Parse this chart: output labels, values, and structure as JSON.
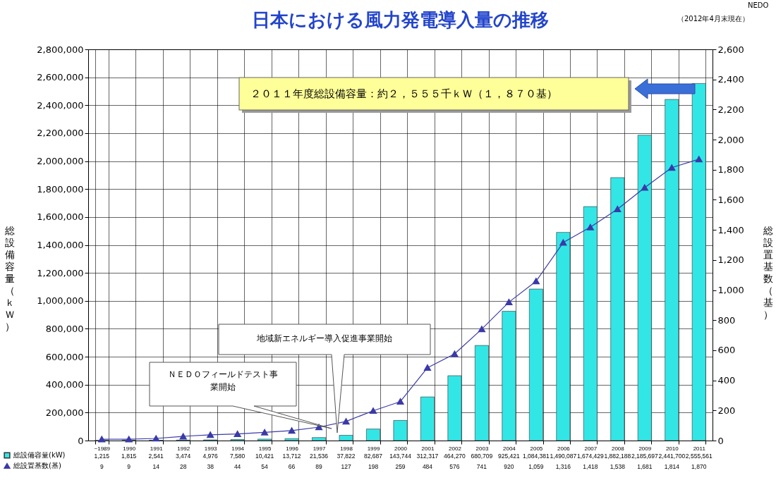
{
  "chart_data": {
    "type": "bar",
    "title": "日本における風力発電導入量の推移",
    "ylabel": "総設備容量（ｋＷ）",
    "y2label": "総設置基数（基）",
    "categories": [
      "~1989",
      "1990",
      "1991",
      "1992",
      "1993",
      "1994",
      "1995",
      "1996",
      "1997",
      "1998",
      "1999",
      "2000",
      "2001",
      "2002",
      "2003",
      "2004",
      "2005",
      "2006",
      "2007",
      "2008",
      "2009",
      "2010",
      "2011"
    ],
    "series": [
      {
        "name": "総設備容量(kW)",
        "color": "#33e6e6",
        "values": [
          1215,
          1815,
          2541,
          3474,
          4976,
          7580,
          10421,
          13712,
          21536,
          37822,
          82687,
          143744,
          312317,
          464270,
          680709,
          925421,
          1084381,
          1490087,
          1674429,
          1882188,
          2185697,
          2441700,
          2555561
        ],
        "value_labels": [
          "1,215",
          "1,815",
          "2,541",
          "3,474",
          "4,976",
          "7,580",
          "10,421",
          "13,712",
          "21,536",
          "37,822",
          "82,687",
          "143,744",
          "312,317",
          "464,270",
          "680,709",
          "925,421",
          "1,084,381",
          "1,490,087",
          "1,674,429",
          "1,882,188",
          "2,185,697",
          "2,441,700",
          "2,555,561"
        ]
      },
      {
        "name": "総設置基数(基)",
        "type": "line",
        "axis": "y2",
        "color": "#3a3aa8",
        "marker": "triangle",
        "values": [
          9,
          9,
          14,
          28,
          38,
          44,
          54,
          66,
          89,
          127,
          198,
          259,
          484,
          576,
          741,
          920,
          1059,
          1316,
          1418,
          1538,
          1681,
          1814,
          1870
        ],
        "value_labels": [
          "9",
          "9",
          "14",
          "28",
          "38",
          "44",
          "54",
          "66",
          "89",
          "127",
          "198",
          "259",
          "484",
          "576",
          "741",
          "920",
          "1,059",
          "1,316",
          "1,418",
          "1,538",
          "1,681",
          "1,814",
          "1,870"
        ]
      }
    ],
    "ylim": [
      0,
      2800000
    ],
    "yticks": [
      0,
      {
        "value": 200000,
        "label": "200,000"
      },
      {
        "value": 400000,
        "label": "400,000"
      },
      {
        "value": 600000,
        "label": "600,000"
      },
      {
        "value": 800000,
        "label": "800,000"
      },
      {
        "value": 1000000,
        "label": "1,000,000"
      },
      {
        "value": 1200000,
        "label": "1,200,000"
      },
      {
        "value": 1400000,
        "label": "1,400,000"
      },
      {
        "value": 1600000,
        "label": "1,600,000"
      },
      {
        "value": 1800000,
        "label": "1,800,000"
      },
      {
        "value": 2000000,
        "label": "2,000,000"
      },
      {
        "value": 2200000,
        "label": "2,200,000"
      },
      {
        "value": 2400000,
        "label": "2,400,000"
      },
      {
        "value": 2600000,
        "label": "2,600,000"
      },
      {
        "value": 2800000,
        "label": "2,800,000"
      }
    ],
    "y2lim": [
      0,
      2600
    ],
    "y2ticks": [
      0,
      200,
      400,
      600,
      800,
      {
        "value": 1000,
        "label": "1,000"
      },
      {
        "value": 1200,
        "label": "1,200"
      },
      {
        "value": 1400,
        "label": "1,400"
      },
      {
        "value": 1600,
        "label": "1,600"
      },
      {
        "value": 1800,
        "label": "1,800"
      },
      {
        "value": 2000,
        "label": "2,000"
      },
      {
        "value": 2200,
        "label": "2,200"
      },
      {
        "value": 2400,
        "label": "2,400"
      },
      {
        "value": 2600,
        "label": "2,600"
      }
    ],
    "grid": true,
    "legend": "bottom left",
    "annotations": [
      "NEDO",
      "（2012年4月末現在）",
      "２０１１年度総設備容量：約２，５５５千ｋＷ（１，８７０基）",
      "地域新エネルギー導入促進事業開始",
      "ＮＥＤＯフィールドテスト事業開始"
    ]
  }
}
